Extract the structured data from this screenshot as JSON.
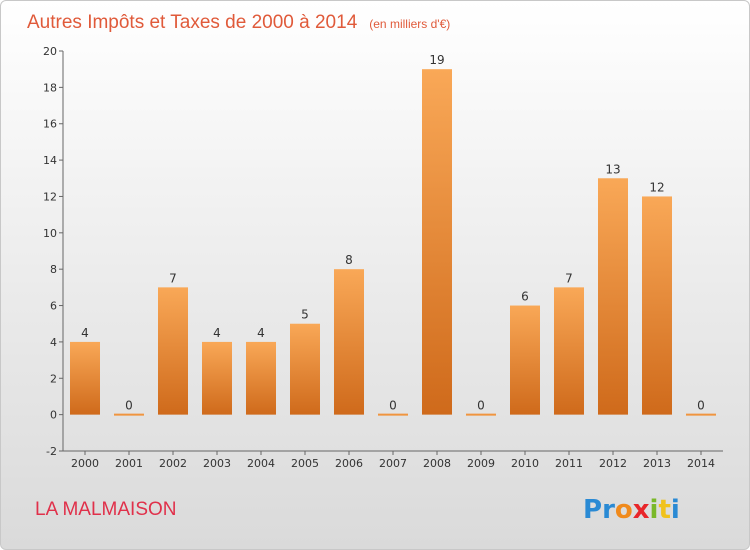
{
  "chart_data": {
    "type": "bar",
    "title": "Autres Impôts et Taxes de 2000 à 2014",
    "unit": "(en milliers d'€)",
    "xlabel": "",
    "ylabel": "",
    "categories": [
      "2000",
      "2001",
      "2002",
      "2003",
      "2004",
      "2005",
      "2006",
      "2007",
      "2008",
      "2009",
      "2010",
      "2011",
      "2012",
      "2013",
      "2014"
    ],
    "values": [
      4,
      0,
      7,
      4,
      4,
      5,
      8,
      0,
      19,
      0,
      6,
      7,
      13,
      12,
      0
    ],
    "ylim": [
      -2,
      20
    ],
    "yticks": [
      -2,
      0,
      2,
      4,
      6,
      8,
      10,
      12,
      14,
      16,
      18,
      20
    ],
    "grid": false,
    "bar_color": "#f0953f"
  },
  "commune": "LA MALMAISON",
  "logo": {
    "letters": [
      "P",
      "r",
      "o",
      "x",
      "i",
      "t",
      "i"
    ],
    "colors": [
      "#2a8ad4",
      "#2a8ad4",
      "#f08a1c",
      "#e8262a",
      "#7ab829",
      "#f0c21c",
      "#2a8ad4"
    ]
  }
}
